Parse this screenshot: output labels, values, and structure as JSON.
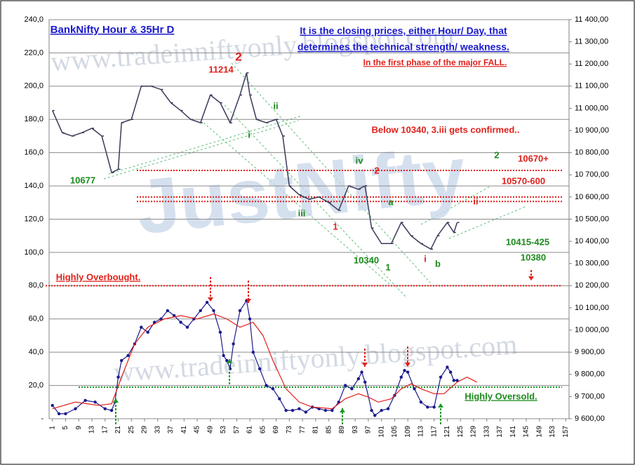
{
  "chart_data": {
    "type": "line",
    "title": "BankNifty Hour & 35Hr D",
    "xlim": [
      0,
      158
    ],
    "xticks": [
      1,
      5,
      9,
      13,
      17,
      21,
      25,
      29,
      33,
      37,
      41,
      45,
      49,
      53,
      57,
      61,
      65,
      69,
      73,
      77,
      81,
      85,
      89,
      93,
      97,
      101,
      105,
      109,
      113,
      117,
      121,
      125,
      129,
      133,
      137,
      141,
      145,
      149,
      153,
      157
    ],
    "ylim": [
      0,
      240
    ],
    "yticks": [
      {
        "value": 0,
        "label": "-"
      },
      {
        "value": 20,
        "label": "20,0"
      },
      {
        "value": 40,
        "label": "40,0"
      },
      {
        "value": 60,
        "label": "60,0"
      },
      {
        "value": 80,
        "label": "80,0"
      },
      {
        "value": 100,
        "label": "100,0"
      },
      {
        "value": 120,
        "label": "120,0"
      },
      {
        "value": 140,
        "label": "140,0"
      },
      {
        "value": 160,
        "label": "160,0"
      },
      {
        "value": 180,
        "label": "180,0"
      },
      {
        "value": 200,
        "label": "200,0"
      },
      {
        "value": 220,
        "label": "220,0"
      },
      {
        "value": 240,
        "label": "240,0"
      }
    ],
    "y2lim": [
      9600,
      11400
    ],
    "y2ticks": [
      {
        "value": 9600,
        "label": "9 600,00"
      },
      {
        "value": 9700,
        "label": "9 700,00"
      },
      {
        "value": 9800,
        "label": "9 800,00"
      },
      {
        "value": 9900,
        "label": "9 900,00"
      },
      {
        "value": 10000,
        "label": "10 000,00"
      },
      {
        "value": 10100,
        "label": "10 100,00"
      },
      {
        "value": 10200,
        "label": "10 200,00"
      },
      {
        "value": 10300,
        "label": "10 300,00"
      },
      {
        "value": 10400,
        "label": "10 400,00"
      },
      {
        "value": 10500,
        "label": "10 500,00"
      },
      {
        "value": 10600,
        "label": "10 600,00"
      },
      {
        "value": 10700,
        "label": "10 700,00"
      },
      {
        "value": 10800,
        "label": "10 800,00"
      },
      {
        "value": 10900,
        "label": "10 900,00"
      },
      {
        "value": 11000,
        "label": "11 000,00"
      },
      {
        "value": 11100,
        "label": "11 100,00"
      },
      {
        "value": 11200,
        "label": "11 200,00"
      },
      {
        "value": 11300,
        "label": "11 300,00"
      },
      {
        "value": 11400,
        "label": "11 400,00"
      }
    ],
    "grid": true,
    "series": [
      {
        "color": "#3a3a5a",
        "axis": "y2",
        "x": [
          1,
          4,
          7,
          10,
          13,
          16,
          19,
          21,
          22,
          25,
          28,
          31,
          34,
          37,
          40,
          43,
          46,
          49,
          52,
          55,
          58,
          60,
          61,
          63,
          66,
          69,
          71,
          73,
          76,
          79,
          82,
          85,
          88,
          91,
          94,
          96,
          98,
          101,
          104,
          107,
          110,
          113,
          116,
          118,
          121,
          123,
          124
        ],
        "values": [
          10990,
          10890,
          10875,
          10890,
          10910,
          10875,
          10710,
          10725,
          10935,
          10950,
          11100,
          11100,
          11085,
          11025,
          10990,
          10950,
          10935,
          11060,
          11025,
          10935,
          11060,
          11160,
          11060,
          10950,
          10935,
          10950,
          10875,
          10650,
          10610,
          10590,
          10600,
          10575,
          10540,
          10650,
          10635,
          10650,
          10460,
          10390,
          10390,
          10485,
          10425,
          10390,
          10365,
          10425,
          10485,
          10440,
          10485
        ]
      },
      {
        "color": "#1a1a8c",
        "x": [
          1,
          3,
          5,
          8,
          11,
          14,
          17,
          19,
          20,
          21,
          22,
          24,
          26,
          28,
          30,
          32,
          34,
          36,
          38,
          40,
          42,
          44,
          46,
          48,
          50,
          52,
          53,
          54,
          55,
          56,
          58,
          60,
          61,
          62,
          64,
          66,
          68,
          70,
          72,
          74,
          76,
          78,
          80,
          82,
          84,
          86,
          88,
          90,
          92,
          94,
          95,
          96,
          98,
          99,
          101,
          103,
          105,
          107,
          108,
          109,
          111,
          113,
          115,
          117,
          119,
          121,
          122,
          123,
          124
        ],
        "values": [
          8,
          3,
          3,
          6,
          11,
          10,
          6,
          5,
          10,
          25,
          35,
          38,
          45,
          55,
          52,
          58,
          60,
          65,
          62,
          58,
          55,
          60,
          65,
          70,
          65,
          52,
          38,
          35,
          30,
          45,
          65,
          71,
          60,
          40,
          30,
          20,
          18,
          12,
          5,
          5,
          6,
          4,
          7,
          6,
          5,
          5,
          10,
          20,
          18,
          24,
          28,
          22,
          5,
          2,
          5,
          6,
          14,
          25,
          29,
          28,
          18,
          10,
          7,
          7,
          25,
          31,
          28,
          23,
          23
        ]
      },
      {
        "color": "#e0201a",
        "x": [
          1,
          8,
          15,
          19,
          22,
          26,
          30,
          35,
          40,
          45,
          50,
          54,
          58,
          62,
          65,
          68,
          72,
          76,
          80,
          86,
          90,
          94,
          97,
          100,
          104,
          107,
          110,
          113,
          117,
          120,
          124,
          127,
          130
        ],
        "values": [
          6,
          10,
          8,
          9,
          25,
          45,
          55,
          60,
          62,
          60,
          63,
          60,
          55,
          58,
          50,
          35,
          18,
          10,
          7,
          6,
          12,
          15,
          13,
          10,
          12,
          18,
          21,
          18,
          15,
          15,
          22,
          25,
          22
        ]
      }
    ],
    "hlines": [
      {
        "value": 10720,
        "axis": "y2",
        "color": "#e0201a"
      },
      {
        "value": 10600,
        "axis": "y2",
        "color": "#e0201a"
      },
      {
        "value": 10580,
        "axis": "y2",
        "color": "#e0201a"
      },
      {
        "value": 80,
        "color": "#e0201a"
      },
      {
        "value": 19,
        "color": "#1a9a2a"
      }
    ],
    "annotations": [
      "It is the closing prices, either Hour/ Day, that",
      "determines the technical strength/ weakness.",
      "In the first phase of the major FALL.",
      "11214",
      "2",
      "ii",
      "i",
      "Below 10340, 3.iii gets confirmed..",
      "10677",
      "iv",
      "2",
      "2",
      "10670+",
      "10570-600",
      "iii",
      "a",
      "ii",
      "1",
      "10415-425",
      "10340",
      "10380",
      "1",
      "i",
      "b",
      "Highly Overbought.",
      "Highly Oversold.",
      "www.tradeinniftyonly.blogspot.com",
      "www.tradeinniftyonly.blogspot.com",
      "JustNifty"
    ]
  }
}
